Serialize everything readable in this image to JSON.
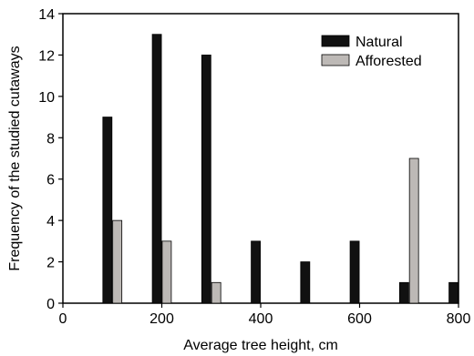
{
  "chart_data": {
    "type": "bar",
    "xlabel": "Average tree height, cm",
    "ylabel": "Frequency of the studied cutaways",
    "xlim": [
      0,
      800
    ],
    "ylim": [
      0,
      14
    ],
    "xticks": [
      0,
      200,
      400,
      600,
      800
    ],
    "yticks": [
      0,
      2,
      4,
      6,
      8,
      10,
      12,
      14
    ],
    "grid": false,
    "legend_position": "top-right",
    "series": [
      {
        "name": "Natural",
        "color": "#111111",
        "points": [
          {
            "x": 90,
            "y": 9
          },
          {
            "x": 190,
            "y": 13
          },
          {
            "x": 290,
            "y": 12
          },
          {
            "x": 390,
            "y": 3
          },
          {
            "x": 490,
            "y": 2
          },
          {
            "x": 590,
            "y": 3
          },
          {
            "x": 690,
            "y": 1
          },
          {
            "x": 790,
            "y": 1
          }
        ]
      },
      {
        "name": "Afforested",
        "color": "#bdb9b6",
        "points": [
          {
            "x": 110,
            "y": 4
          },
          {
            "x": 210,
            "y": 3
          },
          {
            "x": 310,
            "y": 1
          },
          {
            "x": 710,
            "y": 7
          }
        ]
      }
    ]
  }
}
